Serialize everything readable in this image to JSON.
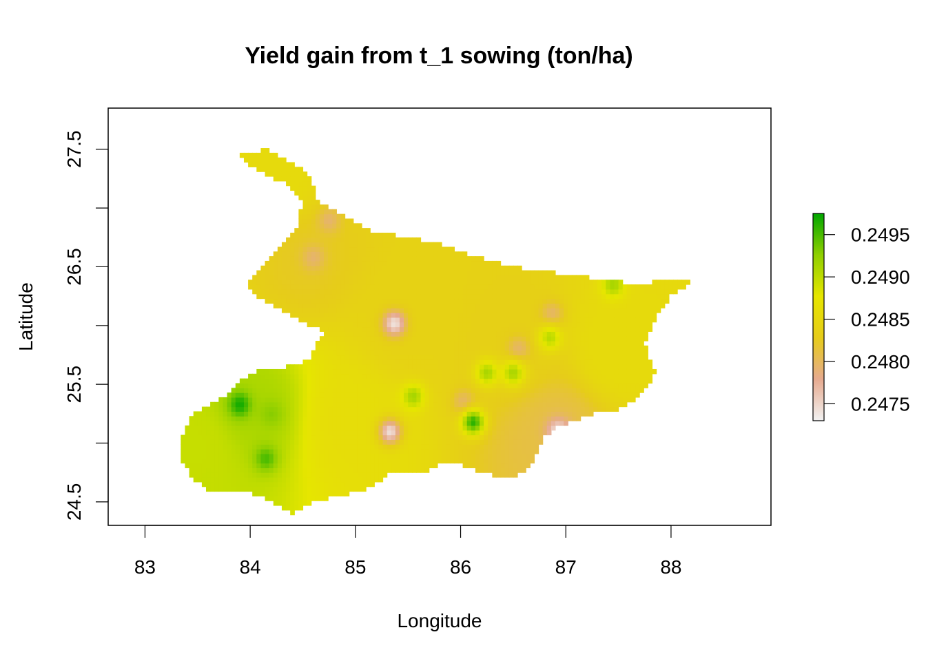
{
  "chart_data": {
    "type": "heatmap",
    "title": "Yield gain from t_1 sowing (ton/ha)",
    "xlabel": "Longitude",
    "ylabel": "Latitude",
    "xlim": [
      82.65,
      88.95
    ],
    "ylim": [
      24.3,
      27.85
    ],
    "x_ticks": [
      83,
      84,
      85,
      86,
      87,
      88
    ],
    "x_tick_labels": [
      "83",
      "84",
      "85",
      "86",
      "87",
      "88"
    ],
    "y_ticks": [
      24.5,
      25.0,
      25.5,
      26.0,
      26.5,
      27.0,
      27.5
    ],
    "y_tick_labels": [
      "24.5",
      "",
      "25.5",
      "",
      "26.5",
      "",
      "27.5"
    ],
    "value_range": [
      0.2473,
      0.24975
    ],
    "legend": {
      "position": "right",
      "ticks": [
        0.2475,
        0.248,
        0.2485,
        0.249,
        0.2495
      ],
      "tick_labels": [
        "0.2475",
        "0.2480",
        "0.2485",
        "0.2490",
        "0.2495"
      ],
      "colors": [
        "#f2f2f2",
        "#e6aa8f",
        "#e6cc1a",
        "#e6e600",
        "#8fcf00",
        "#00a600"
      ]
    },
    "region_outline": [
      [
        83.35,
        25.05
      ],
      [
        83.45,
        25.25
      ],
      [
        83.75,
        25.4
      ],
      [
        84.0,
        25.6
      ],
      [
        84.35,
        25.65
      ],
      [
        84.55,
        25.7
      ],
      [
        84.7,
        25.95
      ],
      [
        84.45,
        26.05
      ],
      [
        84.05,
        26.25
      ],
      [
        83.95,
        26.35
      ],
      [
        84.15,
        26.55
      ],
      [
        84.45,
        26.85
      ],
      [
        84.5,
        27.05
      ],
      [
        84.35,
        27.2
      ],
      [
        84.0,
        27.35
      ],
      [
        83.9,
        27.45
      ],
      [
        84.15,
        27.5
      ],
      [
        84.55,
        27.3
      ],
      [
        84.65,
        27.05
      ],
      [
        84.85,
        26.95
      ],
      [
        85.15,
        26.8
      ],
      [
        85.5,
        26.75
      ],
      [
        85.8,
        26.7
      ],
      [
        86.1,
        26.6
      ],
      [
        86.5,
        26.5
      ],
      [
        86.9,
        26.45
      ],
      [
        87.3,
        26.4
      ],
      [
        87.7,
        26.35
      ],
      [
        88.0,
        26.4
      ],
      [
        88.25,
        26.4
      ],
      [
        88.0,
        26.25
      ],
      [
        87.85,
        26.05
      ],
      [
        87.75,
        25.85
      ],
      [
        87.85,
        25.6
      ],
      [
        87.75,
        25.45
      ],
      [
        87.55,
        25.3
      ],
      [
        87.25,
        25.25
      ],
      [
        86.95,
        25.15
      ],
      [
        86.8,
        25.05
      ],
      [
        86.7,
        24.85
      ],
      [
        86.6,
        24.75
      ],
      [
        86.45,
        24.7
      ],
      [
        86.2,
        24.75
      ],
      [
        85.9,
        24.85
      ],
      [
        85.65,
        24.75
      ],
      [
        85.35,
        24.75
      ],
      [
        85.1,
        24.6
      ],
      [
        84.85,
        24.55
      ],
      [
        84.6,
        24.5
      ],
      [
        84.4,
        24.4
      ],
      [
        84.2,
        24.5
      ],
      [
        83.95,
        24.6
      ],
      [
        83.6,
        24.6
      ],
      [
        83.45,
        24.7
      ],
      [
        83.35,
        24.85
      ]
    ],
    "background_gradient": [
      {
        "lon": 83.5,
        "lat": 25.0,
        "value": 0.24895
      },
      {
        "lon": 84.0,
        "lat": 25.3,
        "value": 0.2491
      },
      {
        "lon": 85.0,
        "lat": 25.2,
        "value": 0.2486
      },
      {
        "lon": 85.5,
        "lat": 26.0,
        "value": 0.2484
      },
      {
        "lon": 84.5,
        "lat": 26.6,
        "value": 0.24825
      },
      {
        "lon": 84.2,
        "lat": 27.2,
        "value": 0.24855
      },
      {
        "lon": 86.5,
        "lat": 25.8,
        "value": 0.24835
      },
      {
        "lon": 87.5,
        "lat": 25.8,
        "value": 0.24855
      },
      {
        "lon": 86.9,
        "lat": 25.1,
        "value": 0.2481
      }
    ],
    "hotspots": [
      {
        "lon": 85.37,
        "lat": 26.02,
        "value": 0.2473
      },
      {
        "lon": 85.33,
        "lat": 25.1,
        "value": 0.2473
      },
      {
        "lon": 86.93,
        "lat": 25.1,
        "value": 0.2473
      },
      {
        "lon": 86.87,
        "lat": 26.1,
        "value": 0.2479
      },
      {
        "lon": 84.6,
        "lat": 26.58,
        "value": 0.2479
      },
      {
        "lon": 84.75,
        "lat": 26.9,
        "value": 0.2479
      },
      {
        "lon": 86.55,
        "lat": 25.8,
        "value": 0.2479
      },
      {
        "lon": 86.03,
        "lat": 25.35,
        "value": 0.2479
      },
      {
        "lon": 83.9,
        "lat": 25.33,
        "value": 0.24975
      },
      {
        "lon": 84.15,
        "lat": 24.87,
        "value": 0.24955
      },
      {
        "lon": 84.2,
        "lat": 25.25,
        "value": 0.2493
      },
      {
        "lon": 86.12,
        "lat": 25.18,
        "value": 0.24975
      },
      {
        "lon": 86.25,
        "lat": 25.6,
        "value": 0.2492
      },
      {
        "lon": 86.5,
        "lat": 25.6,
        "value": 0.2492
      },
      {
        "lon": 87.45,
        "lat": 26.35,
        "value": 0.2492
      },
      {
        "lon": 85.55,
        "lat": 25.4,
        "value": 0.2492
      },
      {
        "lon": 86.85,
        "lat": 25.9,
        "value": 0.2491
      }
    ]
  }
}
